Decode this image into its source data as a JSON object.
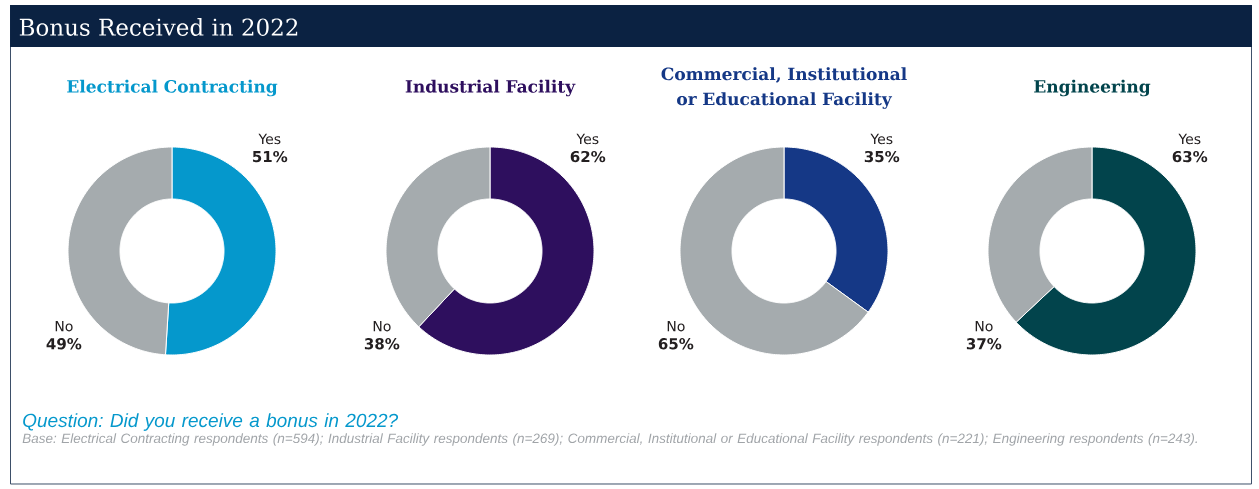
{
  "chart_data": [
    {
      "type": "donut",
      "title": "Electrical Contracting",
      "categories": [
        "Yes",
        "No"
      ],
      "values": [
        51,
        49
      ],
      "value_labels": [
        "51%",
        "49%"
      ],
      "colors": [
        "#0598cc",
        "#a5abae"
      ]
    },
    {
      "type": "donut",
      "title": "Industrial Facility",
      "categories": [
        "Yes",
        "No"
      ],
      "values": [
        62,
        38
      ],
      "value_labels": [
        "62%",
        "38%"
      ],
      "colors": [
        "#2e0f5e",
        "#a5abae"
      ]
    },
    {
      "type": "donut",
      "title": "Commercial, Institutional or Educational Facility",
      "categories": [
        "Yes",
        "No"
      ],
      "values": [
        35,
        65
      ],
      "value_labels": [
        "35%",
        "65%"
      ],
      "colors": [
        "#153886",
        "#a5abae"
      ]
    },
    {
      "type": "donut",
      "title": "Engineering",
      "categories": [
        "Yes",
        "No"
      ],
      "values": [
        63,
        37
      ],
      "value_labels": [
        "63%",
        "37%"
      ],
      "colors": [
        "#02444c",
        "#a5abae"
      ]
    },
    {
      "type": "other",
      "title": "Bonus Received in 2022",
      "annotations": [
        "Question: Did you receive a bonus in 2022?",
        "Base: Electrical Contracting respondents (n=594); Industrial Facility respondents (n=269); Commercial, Institutional or Educational Facility respondents (n=221); Engineering respondents (n=243)."
      ]
    }
  ]
}
